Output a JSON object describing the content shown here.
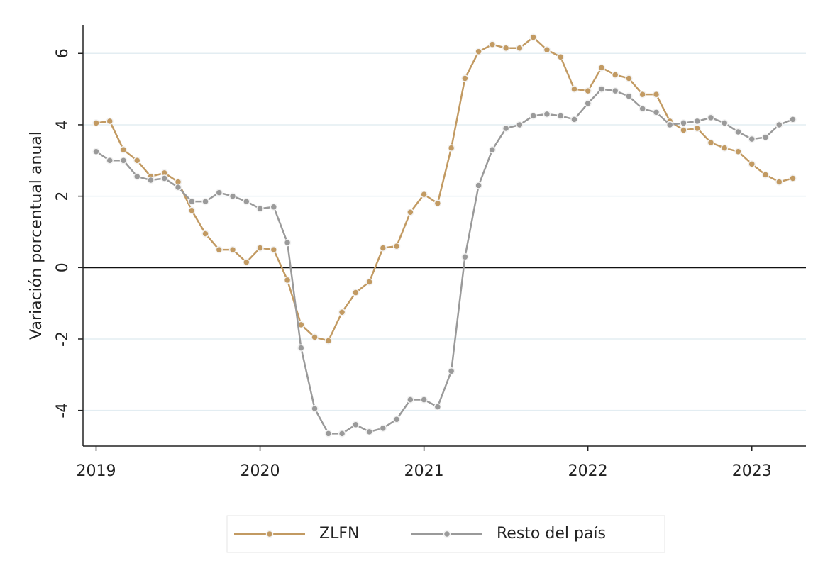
{
  "chart_data": {
    "type": "line",
    "ylabel": "Variación porcentual anual",
    "x": [
      2019,
      2019.0833,
      2019.1667,
      2019.25,
      2019.3333,
      2019.4167,
      2019.5,
      2019.5833,
      2019.6667,
      2019.75,
      2019.8333,
      2019.9167,
      2020,
      2020.0833,
      2020.1667,
      2020.25,
      2020.3333,
      2020.4167,
      2020.5,
      2020.5833,
      2020.6667,
      2020.75,
      2020.8333,
      2020.9167,
      2021,
      2021.0833,
      2021.1667,
      2021.25,
      2021.3333,
      2021.4167,
      2021.5,
      2021.5833,
      2021.6667,
      2021.75,
      2021.8333,
      2021.9167,
      2022,
      2022.0833,
      2022.1667,
      2022.25,
      2022.3333,
      2022.4167,
      2022.5,
      2022.5833,
      2022.6667,
      2022.75,
      2022.8333,
      2022.9167,
      2023,
      2023.0833,
      2023.1667,
      2023.25
    ],
    "series": [
      {
        "name": "ZLFN",
        "color": "#c29a62",
        "values": [
          4.05,
          4.1,
          3.3,
          3.0,
          2.55,
          2.65,
          2.4,
          1.6,
          0.95,
          0.5,
          0.5,
          0.15,
          0.55,
          0.5,
          -0.35,
          -1.6,
          -1.95,
          -2.05,
          -1.25,
          -0.7,
          -0.4,
          0.55,
          0.6,
          1.55,
          2.05,
          1.8,
          3.35,
          5.3,
          6.05,
          6.25,
          6.15,
          6.15,
          6.45,
          6.1,
          5.9,
          5.0,
          4.95,
          5.6,
          5.4,
          5.3,
          4.85,
          4.85,
          4.1,
          3.85,
          3.9,
          3.5,
          3.35,
          3.25,
          2.9,
          2.6,
          2.4,
          2.5
        ]
      },
      {
        "name": "Resto del país",
        "color": "#9a9a9a",
        "values": [
          3.25,
          3.0,
          3.0,
          2.55,
          2.45,
          2.5,
          2.25,
          1.85,
          1.85,
          2.1,
          2.0,
          1.85,
          1.65,
          1.7,
          0.7,
          -2.25,
          -3.95,
          -4.65,
          -4.65,
          -4.4,
          -4.6,
          -4.5,
          -4.25,
          -3.7,
          -3.7,
          -3.9,
          -2.9,
          0.3,
          2.3,
          3.3,
          3.9,
          4.0,
          4.25,
          4.3,
          4.25,
          4.15,
          4.6,
          5.0,
          4.95,
          4.8,
          4.45,
          4.35,
          4.0,
          4.05,
          4.1,
          4.2,
          4.05,
          3.8,
          3.6,
          3.65,
          4.0,
          4.15
        ]
      }
    ],
    "xlim": [
      2018.92,
      2023.33
    ],
    "xticks": [
      2019,
      2020,
      2021,
      2022,
      2023
    ],
    "ylim": [
      -5,
      6.8
    ],
    "yticks": [
      -4,
      -2,
      0,
      2,
      4,
      6
    ],
    "grid": true,
    "legend": "bottom"
  }
}
